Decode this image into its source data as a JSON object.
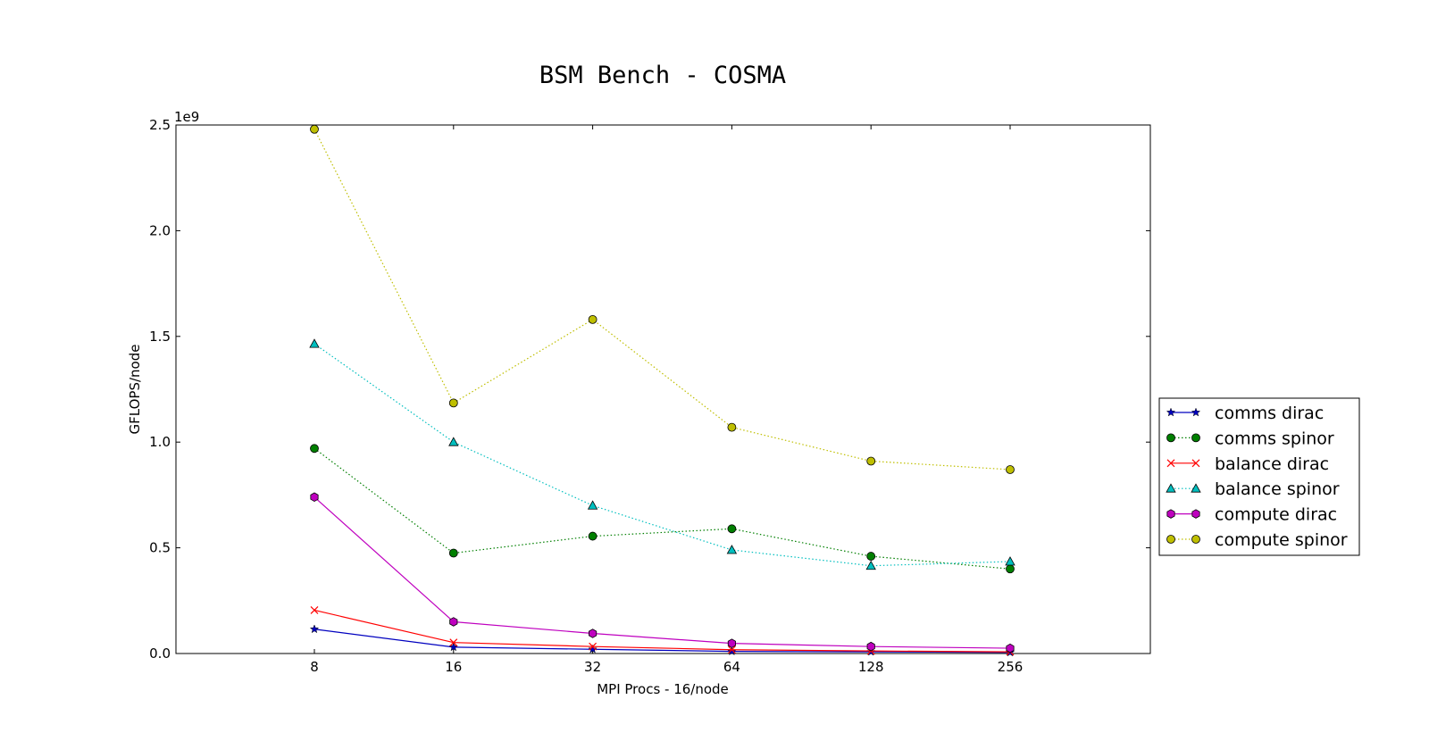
{
  "chart_data": {
    "type": "line",
    "title": "BSM Bench - COSMA",
    "xlabel": "MPI Procs - 16/node",
    "ylabel": "GFLOPS/node",
    "y_scale_label": "1e9",
    "categories": [
      "8",
      "16",
      "32",
      "64",
      "128",
      "256"
    ],
    "ylim": [
      0,
      2.5
    ],
    "yticks": [
      "0.0",
      "0.5",
      "1.0",
      "1.5",
      "2.0",
      "2.5"
    ],
    "legend_position": "right",
    "series": [
      {
        "name": "comms dirac",
        "values": [
          0.115,
          0.03,
          0.02,
          0.01,
          0.008,
          0.005
        ],
        "color": "#0000bf",
        "linestyle": "solid",
        "marker": "star"
      },
      {
        "name": "comms spinor",
        "values": [
          0.97,
          0.475,
          0.555,
          0.59,
          0.46,
          0.4
        ],
        "color": "#007f00",
        "linestyle": "dotted",
        "marker": "circle"
      },
      {
        "name": "balance dirac",
        "values": [
          0.205,
          0.052,
          0.033,
          0.018,
          0.012,
          0.008
        ],
        "color": "#ff0000",
        "linestyle": "solid",
        "marker": "x"
      },
      {
        "name": "balance spinor",
        "values": [
          1.465,
          1.0,
          0.7,
          0.49,
          0.415,
          0.435
        ],
        "color": "#00bfbf",
        "linestyle": "dotted",
        "marker": "triangle"
      },
      {
        "name": "compute dirac",
        "values": [
          0.74,
          0.15,
          0.095,
          0.048,
          0.033,
          0.025
        ],
        "color": "#bf00bf",
        "linestyle": "solid",
        "marker": "hexagon"
      },
      {
        "name": "compute spinor",
        "values": [
          2.48,
          1.185,
          1.58,
          1.07,
          0.91,
          0.87
        ],
        "color": "#bfbf00",
        "linestyle": "dotted",
        "marker": "circle"
      }
    ]
  }
}
